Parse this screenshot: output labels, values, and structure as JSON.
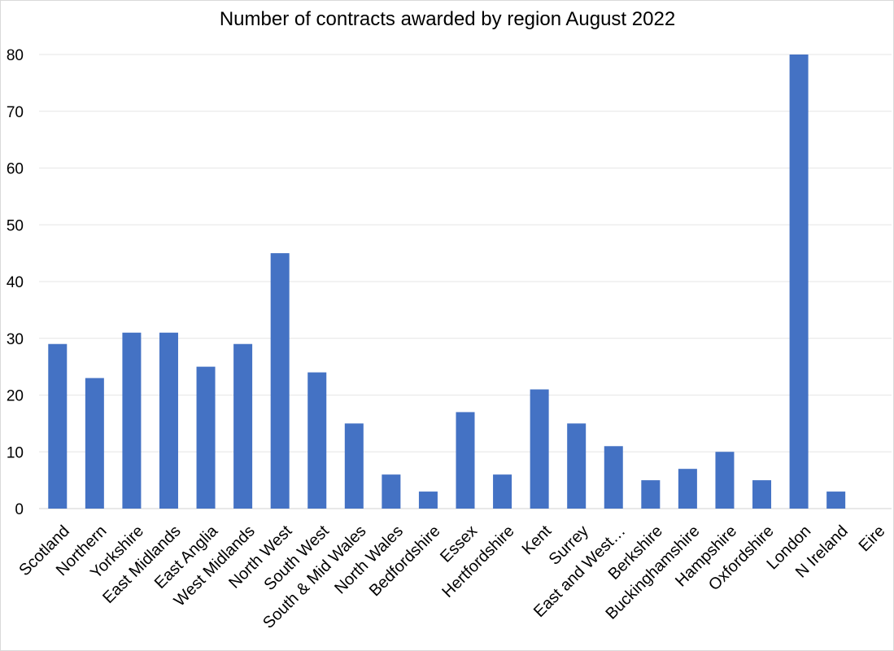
{
  "chart_data": {
    "type": "bar",
    "title": "Number of contracts awarded by region August 2022",
    "xlabel": "",
    "ylabel": "",
    "ylim": [
      0,
      80
    ],
    "yticks": [
      0,
      10,
      20,
      30,
      40,
      50,
      60,
      70,
      80
    ],
    "grid": true,
    "legend": "none",
    "bar_color": "#4472C4",
    "categories": [
      "Scotland",
      "Northern",
      "Yorkshire",
      "East Midlands",
      "East Anglia",
      "West Midlands",
      "North West",
      "South West",
      "South & Mid Wales",
      "North Wales",
      "Bedfordshire",
      "Essex",
      "Hertfordshire",
      "Kent",
      "Surrey",
      "East and West…",
      "Berkshire",
      "Buckinghamshire",
      "Hampshire",
      "Oxfordshire",
      "London",
      "N Ireland",
      "Eire"
    ],
    "values": [
      29,
      23,
      31,
      31,
      25,
      29,
      45,
      24,
      15,
      6,
      3,
      17,
      6,
      21,
      15,
      11,
      5,
      7,
      10,
      5,
      80,
      3,
      0
    ]
  }
}
